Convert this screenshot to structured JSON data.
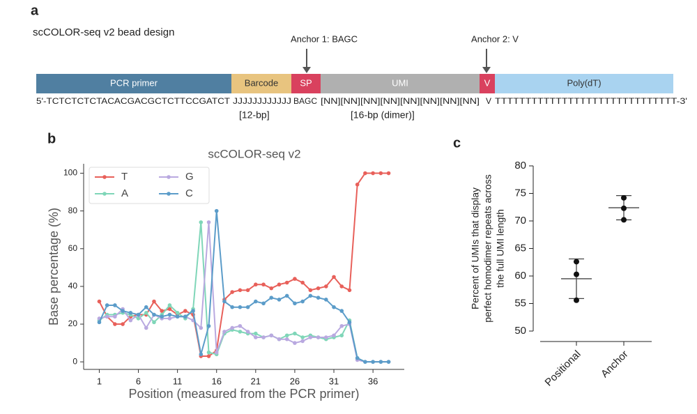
{
  "figure": {
    "panel_a": "a",
    "panel_b": "b",
    "panel_c": "c",
    "design_title": "scCOLOR-seq v2 bead design",
    "anchor1": "Anchor 1: BAGC",
    "anchor2": "Anchor 2: V",
    "segments": [
      "PCR primer",
      "Barcode",
      "SP",
      "UMI",
      "V",
      "Poly(dT)"
    ],
    "sequence": [
      "5'-TCTCTCTCTACACGACGCTCTTCCGATCT",
      "JJJJJJJJJJJJ",
      "BAGC",
      "[NN][NN][NN][NN][NN][NN][NN][NN]",
      "V",
      "TTTTTTTTTTTTTTTTTTTTTTTTTTTTTT-3'"
    ],
    "barcode_length": "[12-bp]",
    "umi_length": "[16-bp (dimer)]"
  },
  "chart_data": [
    {
      "type": "line",
      "title": "scCOLOR-seq v2",
      "xlabel": "Position (measured from the PCR primer)",
      "ylabel": "Base percentage (%)",
      "x": [
        1,
        2,
        3,
        4,
        5,
        6,
        7,
        8,
        9,
        10,
        11,
        12,
        13,
        14,
        15,
        16,
        17,
        18,
        19,
        20,
        21,
        22,
        23,
        24,
        25,
        26,
        27,
        28,
        29,
        30,
        31,
        32,
        33,
        34,
        35,
        36,
        37,
        38
      ],
      "series": [
        {
          "name": "T",
          "color": "#e8605a",
          "values": [
            32,
            24,
            20,
            20,
            24,
            25,
            25,
            32,
            27,
            28,
            25,
            27,
            25,
            3,
            3,
            6,
            33,
            37,
            38,
            38,
            41,
            41,
            39,
            41,
            42,
            44,
            42,
            38,
            39,
            40,
            45,
            40,
            38,
            94,
            100,
            100,
            100,
            100
          ]
        },
        {
          "name": "A",
          "color": "#7fd6b8",
          "values": [
            22,
            25,
            25,
            26,
            25,
            23,
            26,
            21,
            25,
            30,
            26,
            23,
            28,
            74,
            5,
            4,
            15,
            17,
            16,
            15,
            15,
            13,
            14,
            12,
            14,
            15,
            13,
            14,
            13,
            12,
            13,
            14,
            22,
            2,
            0,
            0,
            0,
            0
          ]
        },
        {
          "name": "G",
          "color": "#b9a9e0",
          "values": [
            23,
            24,
            24,
            28,
            22,
            25,
            18,
            25,
            23,
            23,
            24,
            24,
            22,
            18,
            74,
            5,
            16,
            18,
            19,
            16,
            13,
            13,
            14,
            12,
            12,
            10,
            11,
            13,
            13,
            13,
            14,
            19,
            20,
            1,
            0,
            0,
            0,
            0
          ]
        },
        {
          "name": "C",
          "color": "#5b9cc9",
          "values": [
            21,
            30,
            30,
            27,
            26,
            25,
            29,
            25,
            24,
            25,
            24,
            24,
            27,
            4,
            19,
            80,
            32,
            29,
            29,
            29,
            32,
            31,
            34,
            33,
            35,
            31,
            32,
            35,
            34,
            33,
            29,
            27,
            21,
            2,
            0,
            0,
            0,
            0
          ]
        }
      ],
      "xlim": [
        -1,
        40
      ],
      "xticks": [
        1,
        6,
        11,
        16,
        21,
        26,
        31,
        36
      ],
      "ylim": [
        -4,
        105
      ],
      "yticks": [
        0,
        20,
        40,
        60,
        80,
        100
      ],
      "legend": "upper left"
    },
    {
      "type": "scatter",
      "ylabel_lines": [
        "Percent of UMIs that display",
        "perfect homodimer repeats across",
        "the full UMI length"
      ],
      "categories": [
        "Positional",
        "Anchor"
      ],
      "points": [
        [
          62.6,
          60.3,
          55.6
        ],
        [
          74.2,
          72.3,
          70.2
        ]
      ],
      "means": [
        59.5,
        72.4
      ],
      "errors": [
        3.6,
        2.2
      ],
      "color": "#111111",
      "ylim": [
        50,
        80
      ],
      "yticks": [
        50,
        55,
        60,
        65,
        70,
        75,
        80
      ]
    }
  ]
}
